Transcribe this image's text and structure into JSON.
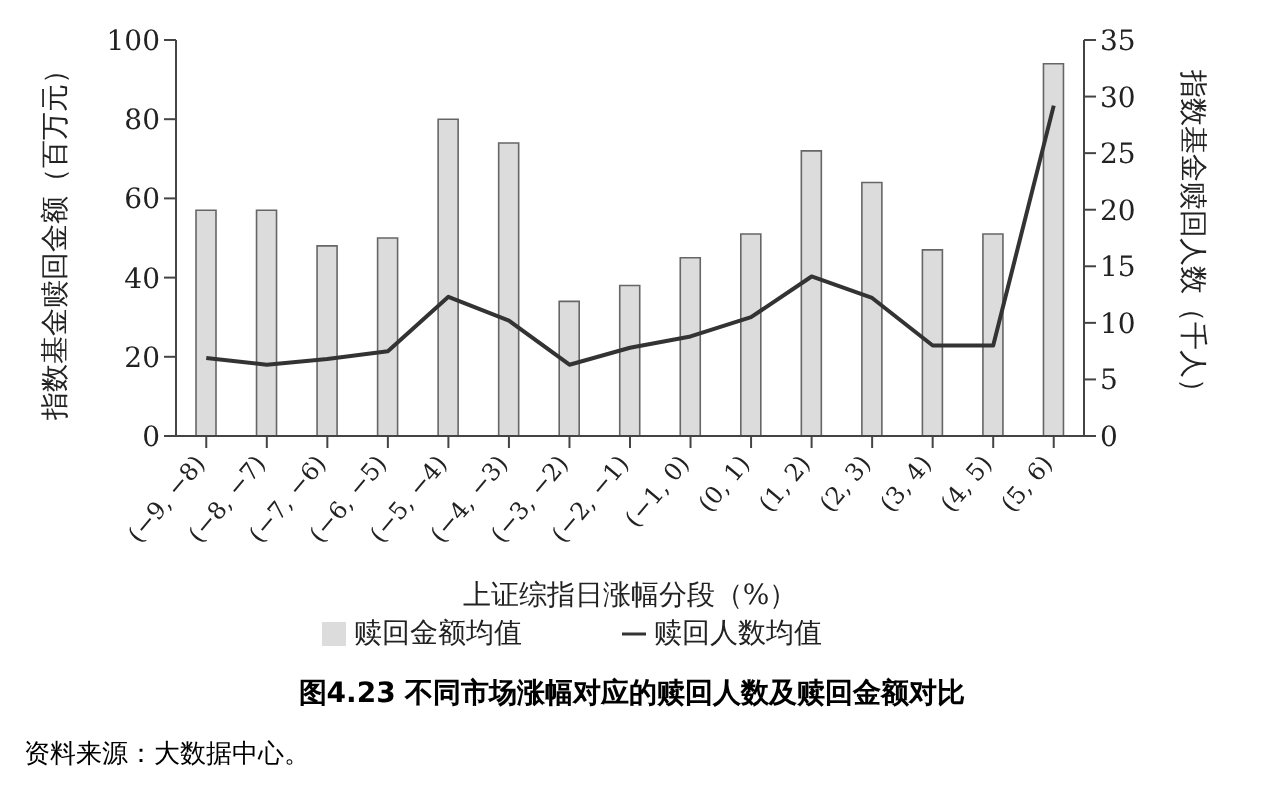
{
  "chart_data": {
    "type": "bar",
    "title": "图4.23 不同市场涨幅对应的赎回人数及赎回金额对比",
    "xlabel": "上证综指日涨幅分段（%）",
    "ylabel": "指数基金赎回金额（百万元）",
    "y2label": "指数基金赎回人数（千人）",
    "annotations": [
      "资料来源：大数据中心。"
    ],
    "categories": [
      "(−9, −8)",
      "(−8, −7)",
      "(−7, −6)",
      "(−6, −5)",
      "(−5, −4)",
      "(−4, −3)",
      "(−3, −2)",
      "(−2, −1)",
      "(−1, 0)",
      "(0, 1)",
      "(1, 2)",
      "(2, 3)",
      "(3, 4)",
      "(4, 5)",
      "(5, 6)"
    ],
    "series": [
      {
        "name": "赎回金额均值",
        "color": "#dcdcdc",
        "values": [
          57,
          57,
          48,
          50,
          80,
          74,
          34,
          38,
          45,
          51,
          72,
          64,
          47,
          51,
          94
        ]
      },
      {
        "name": "赎回人数均值",
        "type": "line",
        "axis": "y2",
        "color": "#333333",
        "values": [
          6.9,
          6.3,
          6.8,
          7.5,
          12.3,
          10.2,
          6.3,
          7.8,
          8.8,
          10.5,
          14.1,
          12.2,
          8,
          8,
          29.2
        ]
      }
    ],
    "ylim": [
      0,
      100
    ],
    "yticks": [
      0,
      20,
      40,
      60,
      80,
      100
    ],
    "y2lim": [
      0,
      35
    ],
    "y2ticks": [
      0,
      5,
      10,
      15,
      20,
      25,
      30,
      35
    ],
    "legend": "bottom",
    "grid": false,
    "marker": "none"
  }
}
